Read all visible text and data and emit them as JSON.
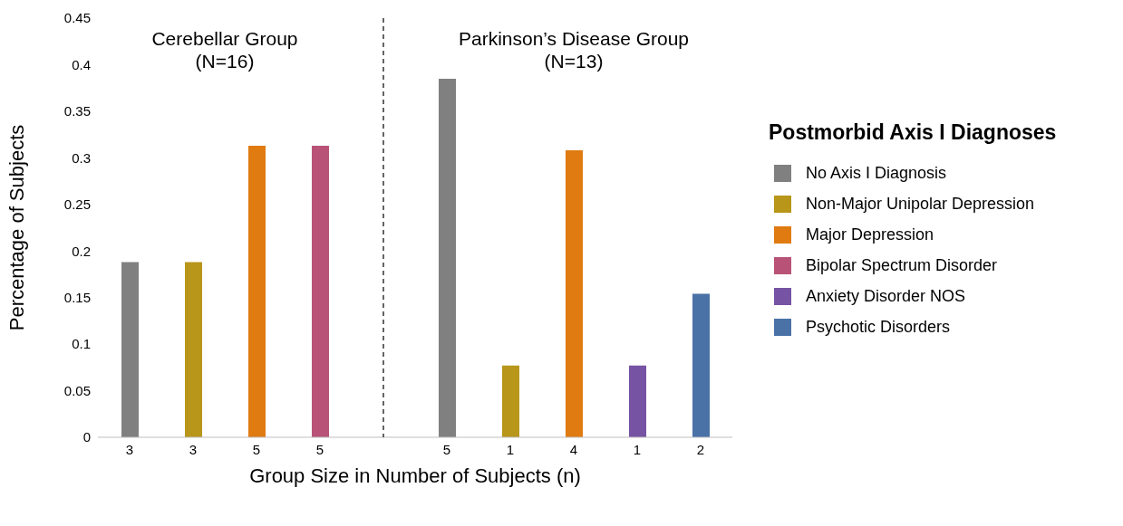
{
  "chart_data": {
    "type": "bar",
    "xlabel": "Group Size in Number of Subjects (n)",
    "ylabel": "Percentage of Subjects",
    "legend_title": "Postmorbid Axis I Diagnoses",
    "categories": [
      "3",
      "3",
      "5",
      "5",
      null,
      "5",
      "1",
      "4",
      "1",
      "2"
    ],
    "stacked": true,
    "series": [
      {
        "name": "No Axis I Diagnosis",
        "color": "#808080",
        "values": [
          0.188,
          null,
          null,
          null,
          null,
          0.385,
          null,
          null,
          null,
          null
        ]
      },
      {
        "name": "Non-Major Unipolar Depression",
        "color": "#b8961a",
        "values": [
          null,
          0.188,
          null,
          null,
          null,
          null,
          0.077,
          null,
          null,
          null
        ]
      },
      {
        "name": "Major Depression",
        "color": "#e07b12",
        "values": [
          null,
          null,
          0.313,
          null,
          null,
          null,
          null,
          0.308,
          null,
          null
        ]
      },
      {
        "name": "Bipolar Spectrum Disorder",
        "color": "#b85377",
        "values": [
          null,
          null,
          null,
          0.313,
          null,
          null,
          null,
          null,
          null,
          null
        ]
      },
      {
        "name": "Anxiety Disorder NOS",
        "color": "#7653a3",
        "values": [
          null,
          null,
          null,
          null,
          null,
          null,
          null,
          null,
          0.077,
          null
        ]
      },
      {
        "name": "Psychotic Disorders",
        "color": "#4a72a6",
        "values": [
          null,
          null,
          null,
          null,
          null,
          null,
          null,
          null,
          null,
          0.154
        ]
      }
    ],
    "annotations": [
      "Cerebellar Group\n(N=16)",
      "Parkinson’s Disease Group\n(N=13)"
    ],
    "ylim": [
      0,
      0.45
    ],
    "yticks": [
      0,
      0.05,
      0.1,
      0.15,
      0.2,
      0.25,
      0.3,
      0.35,
      0.4,
      0.45
    ],
    "ref_lines": [
      {
        "axis": "x",
        "value": null,
        "color": "#333333",
        "line_style": "dashed"
      }
    ],
    "legend": "right"
  }
}
